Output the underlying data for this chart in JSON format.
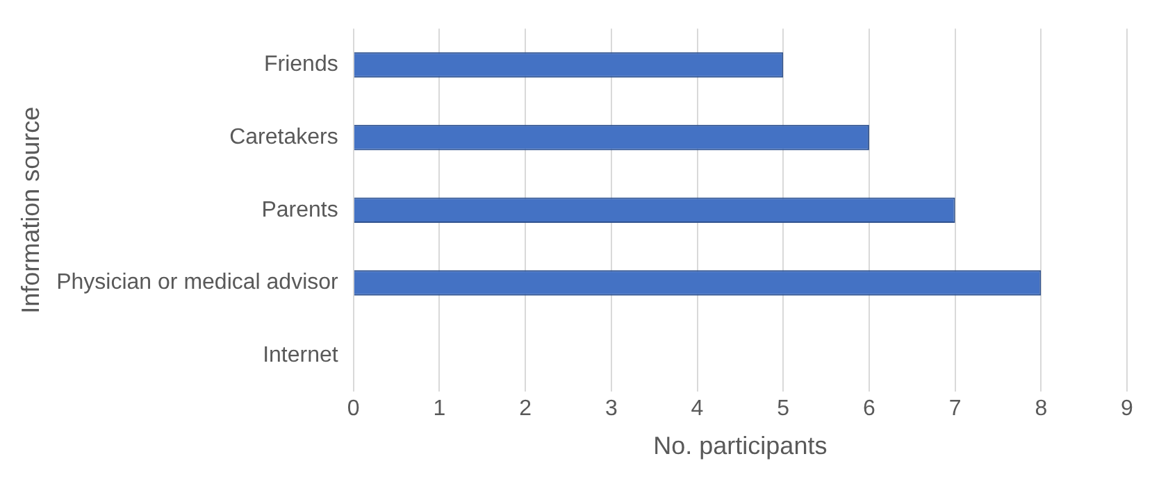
{
  "chart_data": {
    "type": "bar",
    "orientation": "horizontal",
    "xlabel": "No. participants",
    "ylabel": "Information source",
    "categories": [
      "Friends",
      "Caretakers",
      "Parents",
      "Physician or medical advisor",
      "Internet"
    ],
    "values": [
      5,
      6,
      7,
      8,
      0
    ],
    "color": "#4472c4",
    "xlim": [
      0,
      9
    ],
    "xticks": [
      0,
      1,
      2,
      3,
      4,
      5,
      6,
      7,
      8,
      9
    ],
    "grid": "x",
    "legend": false
  }
}
